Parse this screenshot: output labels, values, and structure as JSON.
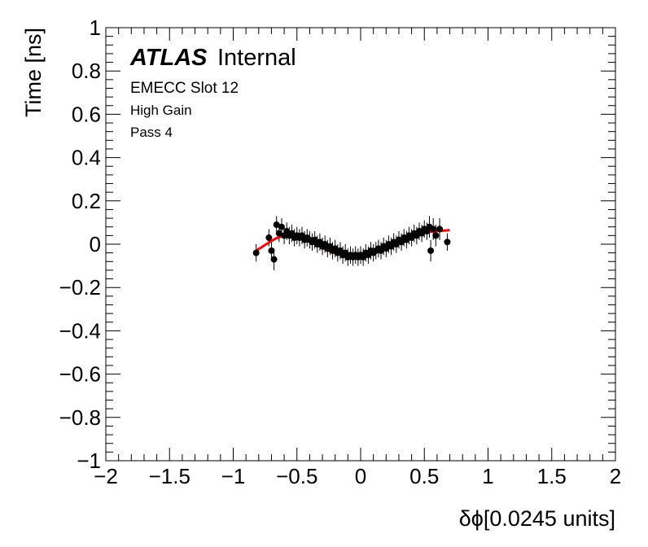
{
  "chart_data": {
    "type": "scatter",
    "xlabel": "δϕ[0.0245 units]",
    "ylabel": "Time [ns]",
    "xlim": [
      -2,
      2
    ],
    "ylim": [
      -1,
      1
    ],
    "x_ticks": [
      -2,
      -1.5,
      -1,
      -0.5,
      0,
      0.5,
      1,
      1.5,
      2
    ],
    "y_ticks": [
      -1,
      -0.8,
      -0.6,
      -0.4,
      -0.2,
      0,
      0.2,
      0.4,
      0.6,
      0.8,
      1
    ],
    "x_tick_labels": [
      "−2",
      "−1.5",
      "−1",
      "−0.5",
      "0",
      "0.5",
      "1",
      "1.5",
      "2"
    ],
    "y_tick_labels": [
      "−1",
      "−0.8",
      "−0.6",
      "−0.4",
      "−0.2",
      "0",
      "0.2",
      "0.4",
      "0.6",
      "0.8",
      "1"
    ],
    "annotations": {
      "atlas_bold": "ATLAS",
      "atlas_rest": "Internal",
      "line1": "EMECC Slot 12",
      "line2": "High Gain",
      "line3": "Pass 4"
    },
    "marker_color": "#000000",
    "fit_color": "#ff0000",
    "series": [
      {
        "type": "points_with_errors",
        "points": [
          {
            "x": -0.82,
            "y": -0.04,
            "err": 0.04
          },
          {
            "x": -0.72,
            "y": 0.03,
            "err": 0.04
          },
          {
            "x": -0.7,
            "y": -0.03,
            "err": 0.04
          },
          {
            "x": -0.68,
            "y": -0.07,
            "err": 0.05
          },
          {
            "x": -0.66,
            "y": 0.09,
            "err": 0.04
          },
          {
            "x": -0.64,
            "y": 0.05,
            "err": 0.04
          },
          {
            "x": -0.62,
            "y": 0.08,
            "err": 0.04
          },
          {
            "x": -0.6,
            "y": 0.04,
            "err": 0.04
          },
          {
            "x": -0.58,
            "y": 0.06,
            "err": 0.04
          },
          {
            "x": -0.56,
            "y": 0.04,
            "err": 0.04
          },
          {
            "x": -0.54,
            "y": 0.05,
            "err": 0.04
          },
          {
            "x": -0.52,
            "y": 0.03,
            "err": 0.04
          },
          {
            "x": -0.5,
            "y": 0.04,
            "err": 0.04
          },
          {
            "x": -0.48,
            "y": 0.03,
            "err": 0.04
          },
          {
            "x": -0.46,
            "y": 0.04,
            "err": 0.04
          },
          {
            "x": -0.44,
            "y": 0.02,
            "err": 0.04
          },
          {
            "x": -0.42,
            "y": 0.03,
            "err": 0.04
          },
          {
            "x": -0.4,
            "y": 0.02,
            "err": 0.04
          },
          {
            "x": -0.38,
            "y": 0.01,
            "err": 0.04
          },
          {
            "x": -0.36,
            "y": 0.02,
            "err": 0.04
          },
          {
            "x": -0.34,
            "y": 0.0,
            "err": 0.04
          },
          {
            "x": -0.32,
            "y": 0.01,
            "err": 0.04
          },
          {
            "x": -0.3,
            "y": -0.01,
            "err": 0.04
          },
          {
            "x": -0.28,
            "y": 0.0,
            "err": 0.04
          },
          {
            "x": -0.26,
            "y": -0.02,
            "err": 0.04
          },
          {
            "x": -0.24,
            "y": -0.01,
            "err": 0.04
          },
          {
            "x": -0.22,
            "y": -0.03,
            "err": 0.04
          },
          {
            "x": -0.2,
            "y": -0.02,
            "err": 0.04
          },
          {
            "x": -0.18,
            "y": -0.04,
            "err": 0.04
          },
          {
            "x": -0.16,
            "y": -0.03,
            "err": 0.04
          },
          {
            "x": -0.14,
            "y": -0.05,
            "err": 0.04
          },
          {
            "x": -0.12,
            "y": -0.04,
            "err": 0.04
          },
          {
            "x": -0.1,
            "y": -0.06,
            "err": 0.04
          },
          {
            "x": -0.08,
            "y": -0.05,
            "err": 0.04
          },
          {
            "x": -0.06,
            "y": -0.06,
            "err": 0.04
          },
          {
            "x": -0.04,
            "y": -0.05,
            "err": 0.04
          },
          {
            "x": -0.02,
            "y": -0.06,
            "err": 0.04
          },
          {
            "x": 0.0,
            "y": -0.05,
            "err": 0.04
          },
          {
            "x": 0.02,
            "y": -0.06,
            "err": 0.04
          },
          {
            "x": 0.04,
            "y": -0.04,
            "err": 0.04
          },
          {
            "x": 0.06,
            "y": -0.05,
            "err": 0.04
          },
          {
            "x": 0.08,
            "y": -0.03,
            "err": 0.04
          },
          {
            "x": 0.1,
            "y": -0.04,
            "err": 0.04
          },
          {
            "x": 0.12,
            "y": -0.03,
            "err": 0.04
          },
          {
            "x": 0.14,
            "y": -0.02,
            "err": 0.04
          },
          {
            "x": 0.16,
            "y": -0.03,
            "err": 0.04
          },
          {
            "x": 0.18,
            "y": -0.01,
            "err": 0.04
          },
          {
            "x": 0.2,
            "y": -0.02,
            "err": 0.04
          },
          {
            "x": 0.22,
            "y": 0.0,
            "err": 0.04
          },
          {
            "x": 0.24,
            "y": -0.01,
            "err": 0.04
          },
          {
            "x": 0.26,
            "y": 0.01,
            "err": 0.04
          },
          {
            "x": 0.28,
            "y": 0.0,
            "err": 0.04
          },
          {
            "x": 0.3,
            "y": 0.02,
            "err": 0.04
          },
          {
            "x": 0.32,
            "y": 0.01,
            "err": 0.04
          },
          {
            "x": 0.34,
            "y": 0.03,
            "err": 0.04
          },
          {
            "x": 0.36,
            "y": 0.02,
            "err": 0.04
          },
          {
            "x": 0.38,
            "y": 0.04,
            "err": 0.04
          },
          {
            "x": 0.4,
            "y": 0.03,
            "err": 0.04
          },
          {
            "x": 0.42,
            "y": 0.05,
            "err": 0.04
          },
          {
            "x": 0.44,
            "y": 0.04,
            "err": 0.04
          },
          {
            "x": 0.46,
            "y": 0.06,
            "err": 0.04
          },
          {
            "x": 0.48,
            "y": 0.05,
            "err": 0.04
          },
          {
            "x": 0.5,
            "y": 0.07,
            "err": 0.04
          },
          {
            "x": 0.52,
            "y": 0.06,
            "err": 0.04
          },
          {
            "x": 0.54,
            "y": 0.08,
            "err": 0.05
          },
          {
            "x": 0.55,
            "y": -0.03,
            "err": 0.05
          },
          {
            "x": 0.57,
            "y": 0.07,
            "err": 0.05
          },
          {
            "x": 0.59,
            "y": 0.04,
            "err": 0.05
          },
          {
            "x": 0.62,
            "y": 0.07,
            "err": 0.05
          },
          {
            "x": 0.68,
            "y": 0.01,
            "err": 0.04
          }
        ]
      },
      {
        "type": "fit_curve",
        "x": [
          -0.82,
          -0.78,
          -0.74,
          -0.7,
          -0.66,
          -0.62,
          -0.58,
          -0.54,
          -0.5,
          -0.46,
          -0.42,
          -0.38,
          -0.34,
          -0.3,
          -0.26,
          -0.22,
          -0.18,
          -0.14,
          -0.1,
          -0.06,
          -0.02,
          0.02,
          0.06,
          0.1,
          0.14,
          0.18,
          0.22,
          0.26,
          0.3,
          0.34,
          0.38,
          0.42,
          0.46,
          0.5,
          0.54,
          0.58,
          0.62,
          0.66,
          0.7
        ],
        "y": [
          -0.03,
          -0.015,
          0.0,
          0.015,
          0.028,
          0.036,
          0.04,
          0.04,
          0.037,
          0.03,
          0.02,
          0.008,
          -0.005,
          -0.017,
          -0.028,
          -0.038,
          -0.046,
          -0.051,
          -0.054,
          -0.055,
          -0.053,
          -0.049,
          -0.043,
          -0.035,
          -0.026,
          -0.016,
          -0.006,
          0.005,
          0.015,
          0.025,
          0.034,
          0.042,
          0.049,
          0.054,
          0.057,
          0.059,
          0.061,
          0.063,
          0.065
        ]
      }
    ]
  }
}
